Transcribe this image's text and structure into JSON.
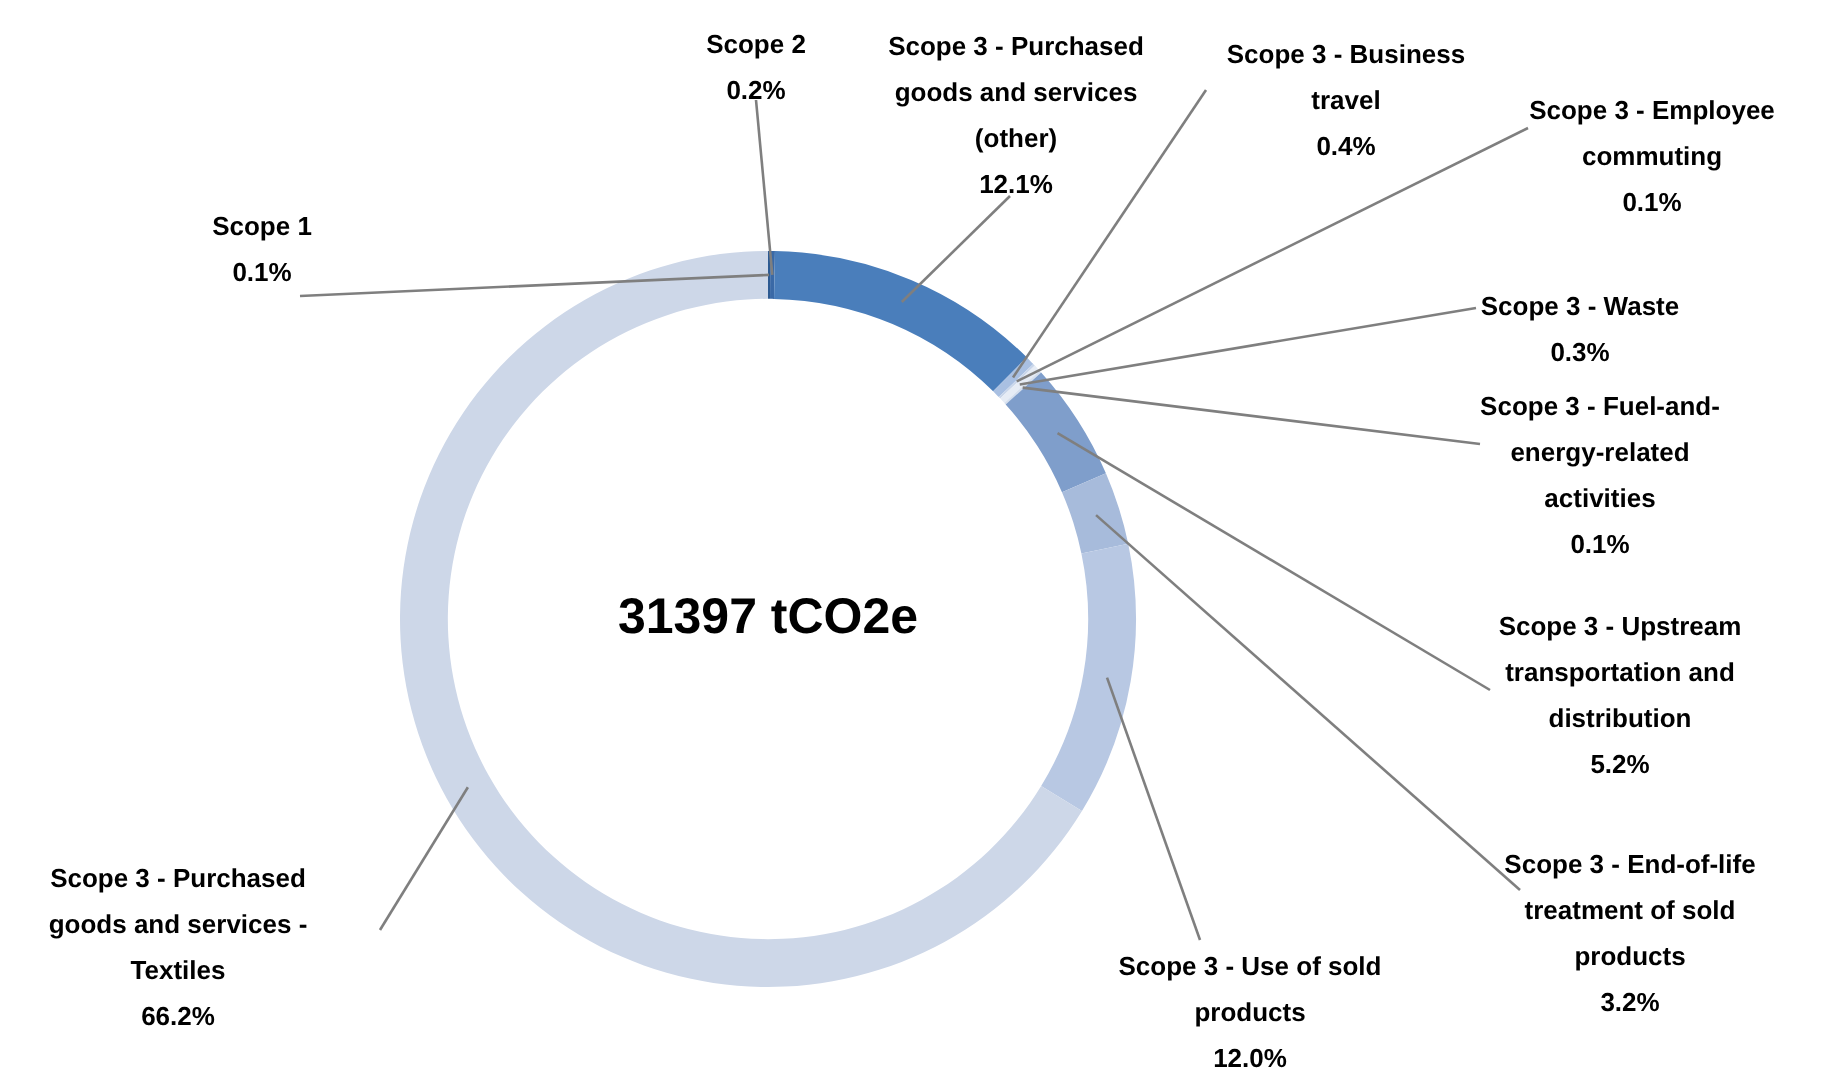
{
  "chart_data": {
    "type": "donut",
    "title": "31397 tCO2e",
    "categories": [
      "Scope 1",
      "Scope 2",
      "Scope 3 - Purchased goods and services (other)",
      "Scope 3 - Business travel",
      "Scope 3 - Employee commuting",
      "Scope 3 - Waste",
      "Scope 3 - Fuel-and-energy-related activities",
      "Scope 3 - Upstream transportation and distribution",
      "Scope 3 - End-of-life treatment of sold products",
      "Scope 3 - Use of sold products",
      "Scope 3 - Purchased goods and services - Textiles"
    ],
    "values": [
      0.1,
      0.2,
      12.1,
      0.4,
      0.1,
      0.3,
      0.1,
      5.2,
      3.2,
      12.0,
      66.2
    ],
    "value_labels": [
      "0.1%",
      "0.2%",
      "12.1%",
      "0.4%",
      "0.1%",
      "0.3%",
      "0.1%",
      "5.2%",
      "3.2%",
      "12.0%",
      "66.2%"
    ],
    "colors": [
      "#2c5a92",
      "#3a69a6",
      "#4a7ebb",
      "#a9c0e2",
      "#c9d6ea",
      "#e6ecf5",
      "#d5dfee",
      "#7f9ecb",
      "#a7bbdb",
      "#b8c8e3",
      "#cdd7e8"
    ],
    "legend": false
  }
}
